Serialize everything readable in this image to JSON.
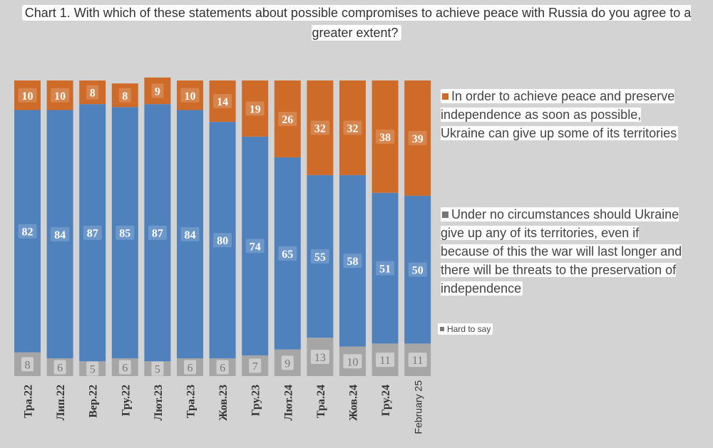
{
  "title": "Chart 1. With which of these statements about possible compromises to achieve peace with Russia do you agree to a greater extent?",
  "colors": {
    "orange": "#cf6b28",
    "blue": "#4f81bd",
    "gray": "#a6a6a6",
    "bg": "#d3d3d3"
  },
  "legend": [
    {
      "key": "give_up",
      "label": "In order to achieve peace and preserve independence as soon as possible, Ukraine can give up some of its territories",
      "color": "#cf6b28"
    },
    {
      "key": "no_give_up",
      "label": "Under no circumstances should Ukraine give up any of its territories, even if because of this the war will last longer and there will be threats to the preservation of independence",
      "color": "#4f81bd"
    },
    {
      "key": "hard",
      "label": "Hard to say",
      "color": "#a6a6a6"
    }
  ],
  "chart_data": {
    "type": "bar",
    "stacked": true,
    "orientation": "vertical",
    "title": "Chart 1. With which of these statements about possible compromises to achieve peace with Russia do you agree to a greater extent?",
    "categories": [
      "Тра.22",
      "Лип.22",
      "Вер.22",
      "Гру.22",
      "Лют.23",
      "Тра.23",
      "Жов.23",
      "Гру.23",
      "Лют.24",
      "Тра.24",
      "Жов.24",
      "Гру.24",
      "February 25"
    ],
    "series": [
      {
        "name": "Hard to say",
        "color": "#a6a6a6",
        "values": [
          8,
          6,
          5,
          6,
          5,
          6,
          6,
          7,
          9,
          13,
          10,
          11,
          11
        ]
      },
      {
        "name": "Under no circumstances should Ukraine give up any of its territories, even if because of this the war will last longer and there will be threats to the preservation of independence",
        "color": "#4f81bd",
        "values": [
          82,
          84,
          87,
          85,
          87,
          84,
          80,
          74,
          65,
          55,
          58,
          51,
          50
        ]
      },
      {
        "name": "In order to achieve peace and preserve independence as soon as possible, Ukraine can give up some of its territories",
        "color": "#cf6b28",
        "values": [
          10,
          10,
          8,
          8,
          9,
          10,
          14,
          19,
          26,
          32,
          32,
          38,
          39
        ]
      }
    ],
    "ylim": [
      0,
      100
    ],
    "xlabel": "",
    "ylabel": "",
    "grid": false,
    "legend_position": "right"
  }
}
